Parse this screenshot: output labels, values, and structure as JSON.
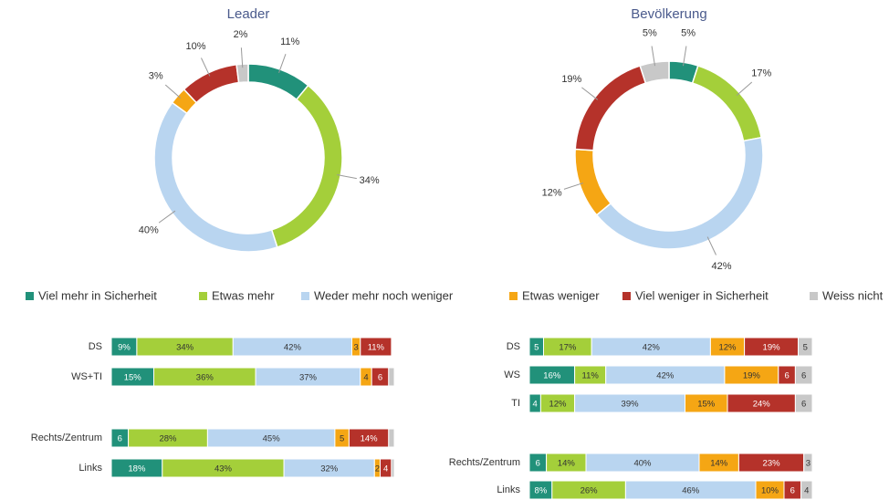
{
  "chart_data": [
    {
      "type": "donut",
      "title": "Leader",
      "values": [
        11,
        34,
        40,
        3,
        10,
        2
      ],
      "value_labels": [
        "11%",
        "34%",
        "40%",
        "3%",
        "10%",
        "2%"
      ],
      "colors": [
        "#21917a",
        "#a4cf3a",
        "#b9d5f0",
        "#f5a614",
        "#b5322a",
        "#c8c8c8"
      ]
    },
    {
      "type": "donut",
      "title": "Bevölkerung",
      "values": [
        5,
        17,
        42,
        12,
        19,
        5
      ],
      "value_labels": [
        "5%",
        "17%",
        "42%",
        "12%",
        "19%",
        "5%"
      ],
      "colors": [
        "#21917a",
        "#a4cf3a",
        "#b9d5f0",
        "#f5a614",
        "#b5322a",
        "#c8c8c8"
      ]
    },
    {
      "type": "stacked_barh",
      "xlim": [
        0,
        100
      ],
      "categories": [
        "DS",
        "WS+TI",
        null,
        "Rechts/Zentrum",
        "Links"
      ],
      "series": [
        {
          "name": "Viel mehr in Sicherheit",
          "color": "#21917a",
          "values": [
            9,
            15,
            null,
            6,
            18
          ],
          "value_labels": [
            "9%",
            "15%",
            null,
            "6",
            "18%"
          ]
        },
        {
          "name": "Etwas mehr",
          "color": "#a4cf3a",
          "values": [
            34,
            36,
            null,
            28,
            43
          ],
          "value_labels": [
            "34%",
            "36%",
            null,
            "28%",
            "43%"
          ]
        },
        {
          "name": "Weder mehr noch weniger",
          "color": "#b9d5f0",
          "values": [
            42,
            37,
            null,
            45,
            32
          ],
          "value_labels": [
            "42%",
            "37%",
            null,
            "45%",
            "32%"
          ]
        },
        {
          "name": "Etwas weniger",
          "color": "#f5a614",
          "values": [
            3,
            4,
            null,
            5,
            2
          ],
          "value_labels": [
            "3",
            "4",
            null,
            "5",
            "2"
          ]
        },
        {
          "name": "Viel weniger in Sicherheit",
          "color": "#b5322a",
          "values": [
            11,
            6,
            null,
            14,
            4
          ],
          "value_labels": [
            "11%",
            "6",
            null,
            "14%",
            "4"
          ]
        },
        {
          "name": "Weiss nicht",
          "color": "#c8c8c8",
          "values": [
            0,
            2,
            null,
            2,
            1
          ],
          "value_labels": [
            null,
            null,
            null,
            null,
            null
          ]
        }
      ]
    },
    {
      "type": "stacked_barh",
      "xlim": [
        0,
        100
      ],
      "categories": [
        "DS",
        "WS",
        "TI",
        null,
        "Rechts/Zentrum",
        "Links"
      ],
      "series": [
        {
          "name": "Viel mehr in Sicherheit",
          "color": "#21917a",
          "values": [
            5,
            16,
            4,
            null,
            6,
            8
          ],
          "value_labels": [
            "5",
            "16%",
            "4",
            null,
            "6",
            "8%"
          ]
        },
        {
          "name": "Etwas mehr",
          "color": "#a4cf3a",
          "values": [
            17,
            11,
            12,
            null,
            14,
            26
          ],
          "value_labels": [
            "17%",
            "11%",
            "12%",
            null,
            "14%",
            "26%"
          ]
        },
        {
          "name": "Weder mehr noch weniger",
          "color": "#b9d5f0",
          "values": [
            42,
            42,
            39,
            null,
            40,
            46
          ],
          "value_labels": [
            "42%",
            "42%",
            "39%",
            null,
            "40%",
            "46%"
          ]
        },
        {
          "name": "Etwas weniger",
          "color": "#f5a614",
          "values": [
            12,
            19,
            15,
            null,
            14,
            10
          ],
          "value_labels": [
            "12%",
            "19%",
            "15%",
            null,
            "14%",
            "10%"
          ]
        },
        {
          "name": "Viel weniger in Sicherheit",
          "color": "#b5322a",
          "values": [
            19,
            6,
            24,
            null,
            23,
            6
          ],
          "value_labels": [
            "19%",
            "6",
            "24%",
            null,
            "23%",
            "6"
          ]
        },
        {
          "name": "Weiss nicht",
          "color": "#c8c8c8",
          "values": [
            5,
            6,
            6,
            null,
            3,
            4
          ],
          "value_labels": [
            "5",
            "6",
            "6",
            null,
            "3",
            "4"
          ]
        }
      ]
    }
  ]
}
